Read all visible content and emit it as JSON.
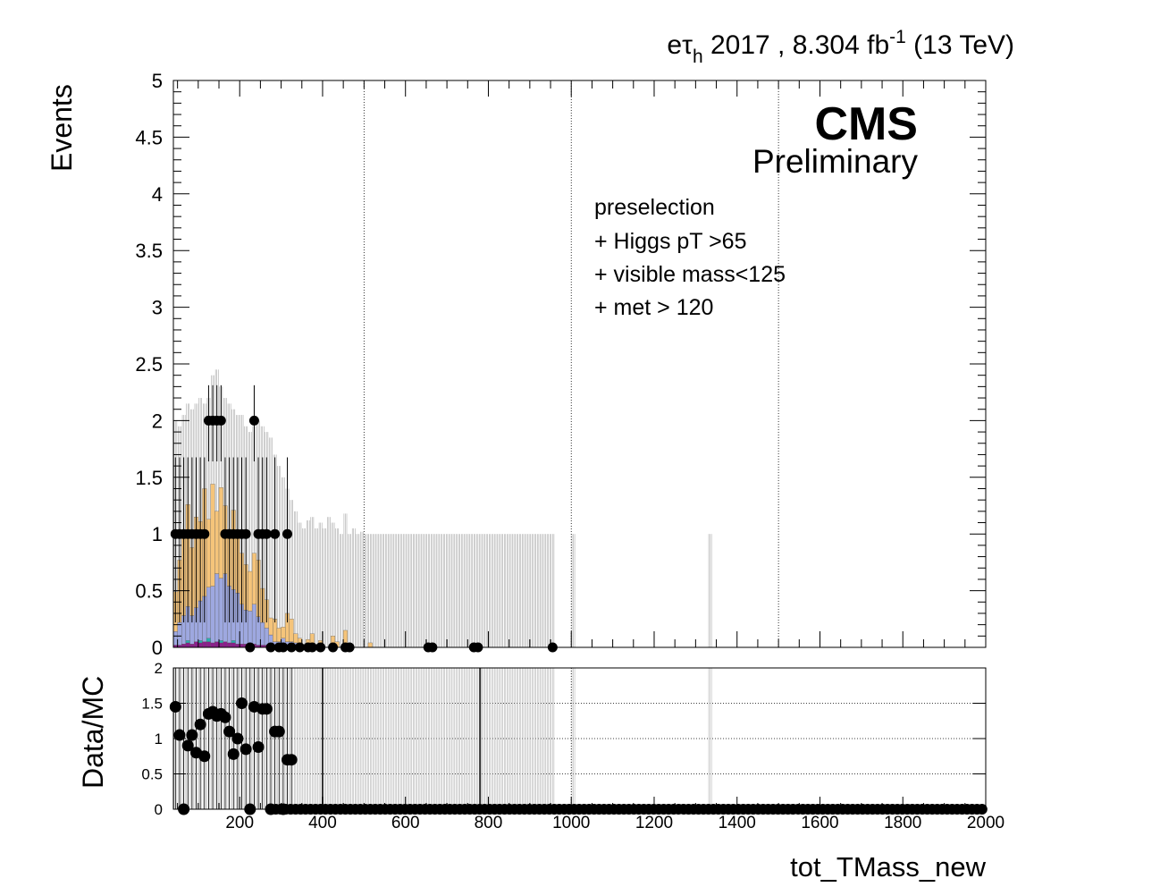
{
  "header": {
    "channel": "eτ",
    "channel_sub": "h",
    "year_lumi": " 2017 , 8.304 fb",
    "lumi_sup": "-1",
    "energy": " (13 TeV)"
  },
  "cms_label": "CMS",
  "prelim_label": "Preliminary",
  "selection_lines": [
    "preselection",
    "+ Higgs pT >65",
    "+ visible mass<125",
    "+ met > 120"
  ],
  "colors": {
    "bkg_orange": "#f5c47a",
    "bkg_blue": "#9ea8e0",
    "bkg_purple": "#8b1f8b",
    "bkg_teal": "#2bb0b0",
    "data": "#000000"
  },
  "chart_data": [
    {
      "type": "bar",
      "panel": "main",
      "ylabel": "Events",
      "xlim": [
        40,
        2000
      ],
      "ylim": [
        0,
        5
      ],
      "y_ticks": [
        "0",
        "0.5",
        "1",
        "1.5",
        "2",
        "2.5",
        "3",
        "3.5",
        "4",
        "4.5",
        "5"
      ],
      "x_grid": [
        500,
        1000,
        1500
      ],
      "bin_width": 10,
      "stack_order": [
        "purple",
        "teal",
        "blue",
        "orange"
      ],
      "bkg": [
        {
          "x": 45,
          "orange": 0.35,
          "blue": 0.12,
          "purple": 0.02
        },
        {
          "x": 55,
          "orange": 0.55,
          "blue": 0.2,
          "purple": 0.02
        },
        {
          "x": 65,
          "orange": 0.75,
          "blue": 0.25,
          "purple": 0.03
        },
        {
          "x": 75,
          "orange": 0.9,
          "blue": 0.3,
          "purple": 0.04,
          "teal": 0.02
        },
        {
          "x": 85,
          "orange": 0.6,
          "blue": 0.25,
          "purple": 0.03
        },
        {
          "x": 95,
          "orange": 0.8,
          "blue": 0.3,
          "purple": 0.05
        },
        {
          "x": 105,
          "orange": 0.7,
          "blue": 0.35,
          "purple": 0.04,
          "teal": 0.02
        },
        {
          "x": 115,
          "orange": 0.95,
          "blue": 0.4,
          "purple": 0.05
        },
        {
          "x": 125,
          "orange": 0.6,
          "blue": 0.45,
          "purple": 0.05,
          "teal": 0.03
        },
        {
          "x": 135,
          "orange": 0.9,
          "blue": 0.5,
          "purple": 0.04
        },
        {
          "x": 145,
          "orange": 0.55,
          "blue": 0.6,
          "purple": 0.05
        },
        {
          "x": 155,
          "orange": 0.8,
          "blue": 0.55,
          "purple": 0.04,
          "teal": 0.02
        },
        {
          "x": 165,
          "orange": 0.6,
          "blue": 0.6,
          "purple": 0.05
        },
        {
          "x": 175,
          "orange": 0.5,
          "blue": 0.5,
          "purple": 0.04
        },
        {
          "x": 185,
          "orange": 0.7,
          "blue": 0.45,
          "purple": 0.04,
          "teal": 0.02
        },
        {
          "x": 195,
          "orange": 0.5,
          "blue": 0.45,
          "purple": 0.03
        },
        {
          "x": 205,
          "orange": 0.45,
          "blue": 0.35,
          "purple": 0.03
        },
        {
          "x": 215,
          "orange": 0.4,
          "blue": 0.3,
          "purple": 0.03
        },
        {
          "x": 225,
          "orange": 0.35,
          "blue": 0.3,
          "purple": 0.02
        },
        {
          "x": 235,
          "orange": 0.45,
          "blue": 0.35,
          "purple": 0.03
        },
        {
          "x": 245,
          "orange": 0.5,
          "blue": 0.25,
          "purple": 0.02
        },
        {
          "x": 255,
          "orange": 0.3,
          "blue": 0.2,
          "purple": 0.02
        },
        {
          "x": 265,
          "orange": 0.25,
          "blue": 0.15,
          "purple": 0.02
        },
        {
          "x": 275,
          "orange": 0.15,
          "blue": 0.1,
          "purple": 0.01
        },
        {
          "x": 285,
          "orange": 0.2,
          "blue": 0.05
        },
        {
          "x": 295,
          "orange": 0.12,
          "blue": 0.05
        },
        {
          "x": 305,
          "orange": 0.1,
          "blue": 0.08
        },
        {
          "x": 315,
          "orange": 0.25,
          "blue": 0.05
        },
        {
          "x": 325,
          "orange": 0.2,
          "blue": 0.05
        },
        {
          "x": 335,
          "orange": 0.08,
          "blue": 0.04
        },
        {
          "x": 345,
          "orange": 0.05,
          "blue": 0.03
        },
        {
          "x": 365,
          "orange": 0.05,
          "blue": 0.02
        },
        {
          "x": 375,
          "orange": 0.12
        },
        {
          "x": 395,
          "orange": 0.06
        },
        {
          "x": 425,
          "orange": 0.1
        },
        {
          "x": 435,
          "orange": 0.05
        },
        {
          "x": 455,
          "orange": 0.15
        },
        {
          "x": 515,
          "orange": 0.04
        }
      ],
      "unc_x": [
        45,
        55,
        65,
        75,
        85,
        95,
        105,
        115,
        125,
        135,
        145,
        155,
        165,
        175,
        185,
        195,
        205,
        215,
        225,
        235,
        245,
        255,
        265,
        275,
        285,
        295,
        305,
        315,
        325,
        335,
        345,
        355,
        365,
        375,
        385,
        395,
        405,
        415,
        425,
        435,
        445,
        455,
        465,
        475,
        485,
        495,
        505,
        515,
        525,
        535,
        545,
        555,
        565,
        575,
        585,
        595,
        605,
        615,
        625,
        635,
        645,
        655,
        665,
        675,
        685,
        695,
        705,
        715,
        725,
        735,
        745,
        755,
        765,
        775,
        785,
        795,
        805,
        815,
        825,
        835,
        845,
        855,
        865,
        875,
        885,
        895,
        905,
        915,
        925,
        935,
        945,
        955,
        1005,
        1335
      ],
      "unc_hi": [
        2.0,
        1.95,
        2.05,
        2.15,
        2.1,
        2.15,
        2.2,
        2.15,
        2.2,
        2.4,
        2.45,
        2.3,
        2.2,
        2.15,
        2.1,
        2.05,
        2.05,
        1.95,
        1.9,
        1.95,
        2.0,
        1.95,
        1.9,
        1.85,
        1.7,
        1.6,
        1.5,
        1.4,
        1.3,
        1.2,
        1.1,
        1.05,
        1.12,
        1.15,
        1.05,
        1.1,
        1.05,
        1.15,
        1.1,
        1.05,
        1.0,
        1.18,
        1.0,
        1.05,
        1.0,
        1.02,
        1.0,
        1.0,
        1.0,
        1.0,
        1.0,
        1.0,
        1.0,
        1.0,
        1.0,
        1.0,
        1.0,
        1.0,
        1.0,
        1.0,
        1.0,
        1.0,
        1.0,
        1.0,
        1.0,
        1.0,
        1.0,
        1.0,
        1.0,
        1.0,
        1.0,
        1.0,
        1.0,
        1.0,
        1.0,
        1.0,
        1.0,
        1.0,
        1.0,
        1.0,
        1.0,
        1.0,
        1.0,
        1.0,
        1.0,
        1.0,
        1.0,
        1.0,
        1.0,
        1.0,
        1.0,
        1.0,
        1.0,
        1.0
      ],
      "data_points": [
        {
          "x": 45,
          "y": 1,
          "err": 1.3
        },
        {
          "x": 55,
          "y": 1,
          "err": 1.3
        },
        {
          "x": 65,
          "y": 1,
          "err": 1.3
        },
        {
          "x": 75,
          "y": 1,
          "err": 1.3
        },
        {
          "x": 85,
          "y": 1,
          "err": 1.3
        },
        {
          "x": 95,
          "y": 1,
          "err": 1.3
        },
        {
          "x": 105,
          "y": 1,
          "err": 1.3
        },
        {
          "x": 115,
          "y": 1,
          "err": 1.3
        },
        {
          "x": 125,
          "y": 2,
          "err": 0.6
        },
        {
          "x": 135,
          "y": 2,
          "err": 0.6
        },
        {
          "x": 145,
          "y": 2,
          "err": 0.6
        },
        {
          "x": 155,
          "y": 2,
          "err": 0.6
        },
        {
          "x": 165,
          "y": 1,
          "err": 1.3
        },
        {
          "x": 175,
          "y": 1,
          "err": 1.3
        },
        {
          "x": 185,
          "y": 1,
          "err": 1.3
        },
        {
          "x": 195,
          "y": 1,
          "err": 1.3
        },
        {
          "x": 205,
          "y": 1,
          "err": 1.3
        },
        {
          "x": 215,
          "y": 1,
          "err": 1.3
        },
        {
          "x": 225,
          "y": 0,
          "err": 0
        },
        {
          "x": 235,
          "y": 2,
          "err": 0.6
        },
        {
          "x": 245,
          "y": 1,
          "err": 1.3
        },
        {
          "x": 255,
          "y": 1,
          "err": 1.3
        },
        {
          "x": 265,
          "y": 1,
          "err": 1.3
        },
        {
          "x": 275,
          "y": 0,
          "err": 0
        },
        {
          "x": 285,
          "y": 1,
          "err": 1.3
        },
        {
          "x": 295,
          "y": 0,
          "err": 0
        },
        {
          "x": 305,
          "y": 0,
          "err": 0
        },
        {
          "x": 315,
          "y": 1,
          "err": 1.3
        },
        {
          "x": 325,
          "y": 0,
          "err": 0
        },
        {
          "x": 345,
          "y": 0,
          "err": 0
        },
        {
          "x": 365,
          "y": 0,
          "err": 0
        },
        {
          "x": 375,
          "y": 0,
          "err": 0
        },
        {
          "x": 395,
          "y": 0,
          "err": 0
        },
        {
          "x": 425,
          "y": 0,
          "err": 0
        },
        {
          "x": 455,
          "y": 0,
          "err": 0
        },
        {
          "x": 465,
          "y": 0,
          "err": 0
        },
        {
          "x": 655,
          "y": 0,
          "err": 0
        },
        {
          "x": 665,
          "y": 0,
          "err": 0
        },
        {
          "x": 765,
          "y": 0,
          "err": 0
        },
        {
          "x": 775,
          "y": 0,
          "err": 0
        },
        {
          "x": 955,
          "y": 0,
          "err": 0
        }
      ]
    },
    {
      "type": "scatter",
      "panel": "ratio",
      "ylabel": "Data/MC",
      "xlabel": "tot_TMass_new",
      "xlim": [
        40,
        2000
      ],
      "ylim": [
        0,
        2
      ],
      "y_ticks": [
        "0",
        "0.5",
        "1",
        "1.5",
        "2"
      ],
      "x_ticks": [
        "200",
        "400",
        "600",
        "800",
        "1000",
        "1200",
        "1400",
        "1600",
        "1800",
        "2000"
      ],
      "x_grid": [
        400,
        1000
      ],
      "unc_x": [
        400,
        780
      ],
      "ratio_points": [
        {
          "x": 45,
          "y": 1.45
        },
        {
          "x": 55,
          "y": 1.05
        },
        {
          "x": 65,
          "y": 0
        },
        {
          "x": 75,
          "y": 0.9
        },
        {
          "x": 85,
          "y": 1.05
        },
        {
          "x": 95,
          "y": 0.8
        },
        {
          "x": 105,
          "y": 1.2
        },
        {
          "x": 115,
          "y": 0.75
        },
        {
          "x": 125,
          "y": 1.35
        },
        {
          "x": 135,
          "y": 1.38
        },
        {
          "x": 145,
          "y": 1.32
        },
        {
          "x": 155,
          "y": 1.35
        },
        {
          "x": 165,
          "y": 1.3
        },
        {
          "x": 175,
          "y": 1.1
        },
        {
          "x": 185,
          "y": 0.78
        },
        {
          "x": 195,
          "y": 1.0
        },
        {
          "x": 205,
          "y": 1.5
        },
        {
          "x": 215,
          "y": 0.85
        },
        {
          "x": 225,
          "y": 0
        },
        {
          "x": 235,
          "y": 1.45
        },
        {
          "x": 245,
          "y": 0.88
        },
        {
          "x": 255,
          "y": 1.42
        },
        {
          "x": 265,
          "y": 1.42
        },
        {
          "x": 275,
          "y": 0
        },
        {
          "x": 285,
          "y": 1.1
        },
        {
          "x": 295,
          "y": 1.1
        },
        {
          "x": 305,
          "y": 0
        },
        {
          "x": 315,
          "y": 0.7
        },
        {
          "x": 325,
          "y": 0.7
        }
      ],
      "zero_from": 275,
      "zero_to": 2000,
      "zero_step": 12
    }
  ]
}
